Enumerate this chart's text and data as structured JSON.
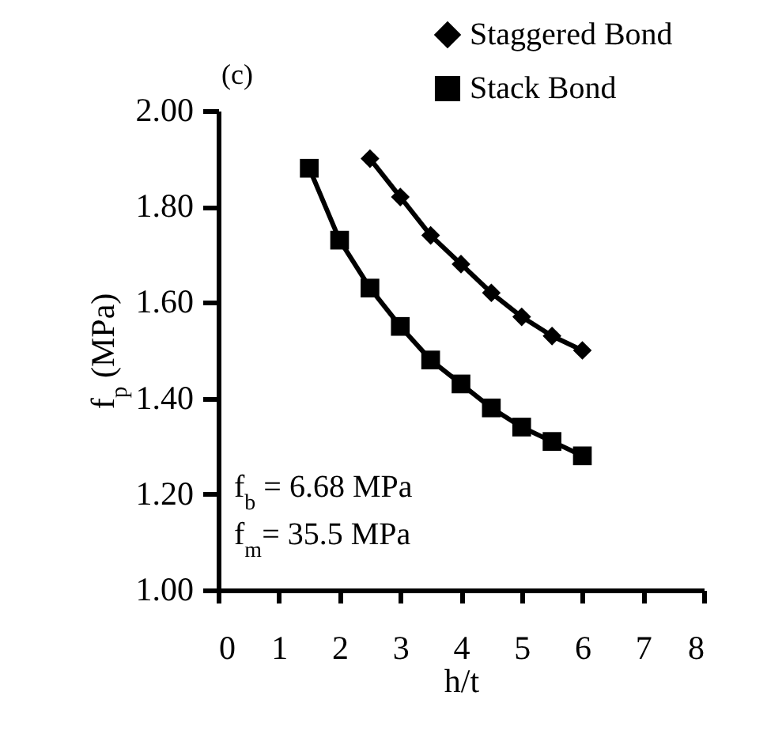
{
  "chart_data": {
    "type": "line",
    "xlabel": "h/t",
    "ylabel": "f$_{p}$ (MPa)",
    "annotations": [
      "(c)",
      "f$_{b}$ = 6.68 MPa",
      "f$_{m}$= 35.5 MPa"
    ],
    "xlim": [
      0,
      8
    ],
    "xticks": [
      0,
      1,
      2,
      3,
      4,
      5,
      6,
      7,
      8
    ],
    "ylim": [
      1,
      2
    ],
    "yticks": [
      {
        "value": 1,
        "label": "1.00"
      },
      {
        "value": 1.2,
        "label": "1.20"
      },
      {
        "value": 1.4,
        "label": "1.40"
      },
      {
        "value": 1.6,
        "label": "1.60"
      },
      {
        "value": 1.8,
        "label": "1.80"
      },
      {
        "value": 2,
        "label": "2.00"
      }
    ],
    "grid": false,
    "legend": "top right",
    "line_style": "solid",
    "series": [
      {
        "name": "Staggered Bond",
        "color": "#000000",
        "marker": "diamond",
        "x": [
          2.5,
          3,
          3.5,
          4,
          4.5,
          5,
          5.5,
          6
        ],
        "values": [
          1.9,
          1.82,
          1.74,
          1.68,
          1.62,
          1.57,
          1.53,
          1.5
        ]
      },
      {
        "name": "Stack Bond",
        "color": "#000000",
        "marker": "square",
        "x": [
          1.5,
          2,
          2.5,
          3,
          3.5,
          4,
          4.5,
          5,
          5.5,
          6
        ],
        "values": [
          1.88,
          1.73,
          1.63,
          1.55,
          1.48,
          1.43,
          1.38,
          1.34,
          1.31,
          1.28
        ]
      }
    ]
  }
}
